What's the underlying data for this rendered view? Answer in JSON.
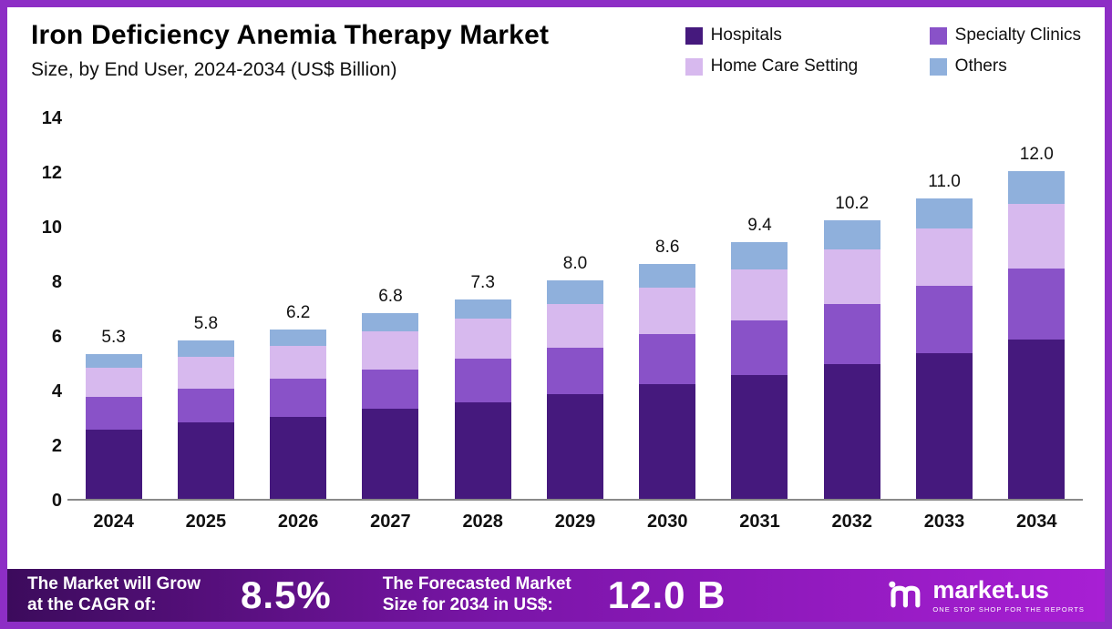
{
  "header": {
    "title": "Iron Deficiency Anemia Therapy Market",
    "subtitle": "Size, by End User, 2024-2034 (US$ Billion)"
  },
  "legend": [
    {
      "label": "Hospitals",
      "color": "#45197d"
    },
    {
      "label": "Specialty Clinics",
      "color": "#8952c8"
    },
    {
      "label": "Home Care Setting",
      "color": "#d7b9ee"
    },
    {
      "label": "Others",
      "color": "#8fb0dc"
    }
  ],
  "chart_data": {
    "type": "bar",
    "stacked": true,
    "title": "Iron Deficiency Anemia Therapy Market Size, by End User, 2024-2034 (US$ Billion)",
    "categories": [
      "2024",
      "2025",
      "2026",
      "2027",
      "2028",
      "2029",
      "2030",
      "2031",
      "2032",
      "2033",
      "2034"
    ],
    "series": [
      {
        "name": "Hospitals",
        "color": "#45197d",
        "values": [
          2.55,
          2.8,
          3.0,
          3.3,
          3.55,
          3.85,
          4.2,
          4.55,
          4.95,
          5.35,
          5.85
        ]
      },
      {
        "name": "Specialty Clinics",
        "color": "#8952c8",
        "values": [
          1.2,
          1.25,
          1.4,
          1.45,
          1.6,
          1.7,
          1.85,
          2.0,
          2.2,
          2.45,
          2.6
        ]
      },
      {
        "name": "Home Care Setting",
        "color": "#d7b9ee",
        "values": [
          1.05,
          1.15,
          1.2,
          1.4,
          1.45,
          1.6,
          1.7,
          1.85,
          2.0,
          2.1,
          2.35
        ]
      },
      {
        "name": "Others",
        "color": "#8fb0dc",
        "values": [
          0.5,
          0.6,
          0.6,
          0.65,
          0.7,
          0.85,
          0.85,
          1.0,
          1.05,
          1.1,
          1.2
        ]
      }
    ],
    "totals": [
      5.3,
      5.8,
      6.2,
      6.8,
      7.3,
      8.0,
      8.6,
      9.4,
      10.2,
      11.0,
      12.0
    ],
    "xlabel": "",
    "ylabel": "",
    "ylim": [
      0,
      14
    ],
    "yticks": [
      0,
      2,
      4,
      6,
      8,
      10,
      12,
      14
    ],
    "grid": false,
    "legend_position": "top-right"
  },
  "footer": {
    "cagr_label_line1": "The Market will Grow",
    "cagr_label_line2": "at the CAGR of:",
    "cagr_value": "8.5%",
    "forecast_label_line1": "The Forecasted Market",
    "forecast_label_line2": "Size for 2034 in US$:",
    "forecast_value": "12.0 B",
    "brand": "market.us",
    "brand_tagline": "ONE STOP SHOP FOR THE REPORTS"
  }
}
